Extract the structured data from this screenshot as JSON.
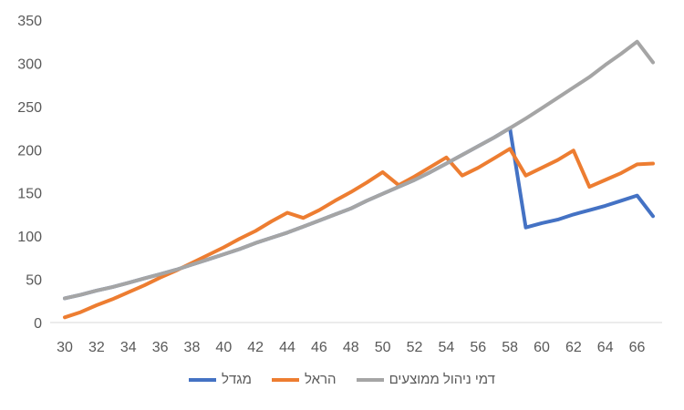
{
  "chart_data": {
    "type": "line",
    "title": "",
    "xlabel": "",
    "ylabel": "",
    "x": [
      30,
      31,
      32,
      33,
      34,
      35,
      36,
      37,
      38,
      39,
      40,
      41,
      42,
      43,
      44,
      45,
      46,
      47,
      48,
      49,
      50,
      51,
      52,
      53,
      54,
      55,
      56,
      57,
      58,
      59,
      60,
      61,
      62,
      63,
      64,
      65,
      66,
      67
    ],
    "xticks": [
      30,
      32,
      34,
      36,
      38,
      40,
      42,
      44,
      46,
      48,
      50,
      52,
      54,
      56,
      58,
      60,
      62,
      64,
      66
    ],
    "yticks": [
      0,
      50,
      100,
      150,
      200,
      250,
      300,
      350
    ],
    "ylim": [
      0,
      350
    ],
    "grid": false,
    "legend_position": "bottom",
    "series": [
      {
        "name": "מגדל",
        "color": "#4472C4",
        "values": [
          28,
          32,
          37,
          41,
          46,
          51,
          56,
          61,
          67,
          73,
          79,
          85,
          92,
          98,
          104,
          111,
          118,
          125,
          132,
          141,
          149,
          157,
          165,
          174,
          184,
          194,
          204,
          214,
          225,
          110,
          115,
          119,
          125,
          130,
          135,
          141,
          147,
          123
        ]
      },
      {
        "name": "הראל",
        "color": "#ED7D31",
        "values": [
          6,
          12,
          20,
          27,
          35,
          43,
          52,
          60,
          69,
          78,
          87,
          97,
          106,
          117,
          127,
          121,
          130,
          141,
          151,
          162,
          174,
          159,
          169,
          180,
          191,
          170,
          179,
          190,
          201,
          170,
          179,
          188,
          199,
          157,
          165,
          173,
          183,
          184
        ]
      },
      {
        "name": "דמי ניהול ממוצעים",
        "color": "#A5A5A5",
        "values": [
          28,
          32,
          37,
          41,
          46,
          51,
          56,
          61,
          67,
          73,
          79,
          85,
          92,
          98,
          104,
          111,
          118,
          125,
          132,
          141,
          149,
          157,
          165,
          174,
          184,
          194,
          204,
          214,
          225,
          236,
          248,
          260,
          272,
          284,
          298,
          311,
          325,
          301
        ]
      }
    ]
  }
}
